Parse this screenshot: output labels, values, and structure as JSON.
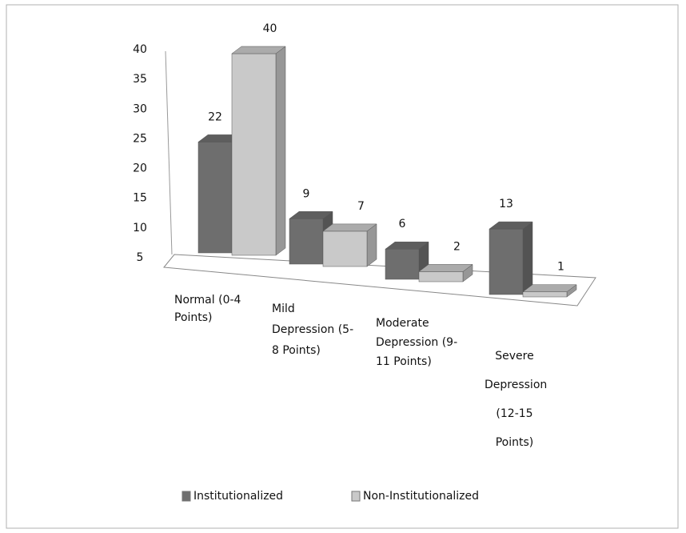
{
  "chart_data": {
    "type": "bar3d",
    "categories": [
      "Normal (0-4 Points)",
      "Mild Depression (5-8 Points)",
      "Moderate Depression (9-11 Points)",
      "Severe Depression (12-15 Points)"
    ],
    "series": [
      {
        "name": "Institutionalized",
        "color": "#6e6e6e",
        "values": [
          22,
          9,
          6,
          13
        ]
      },
      {
        "name": "Non-Institutionalized",
        "color": "#c9c9c9",
        "values": [
          40,
          7,
          2,
          1
        ]
      }
    ],
    "ylim": [
      0,
      40
    ],
    "yticks": [
      5,
      10,
      15,
      20,
      25,
      30,
      35,
      40
    ],
    "legend": "bottom"
  }
}
